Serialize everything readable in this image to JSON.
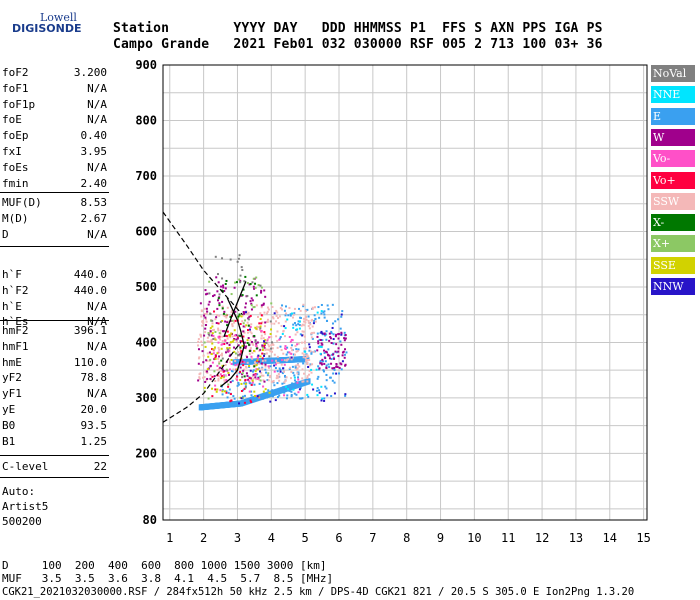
{
  "logo": {
    "line1": "Lowell",
    "line2": "DIGISONDE"
  },
  "header": {
    "row1": "Station        YYYY DAY   DDD HHMMSS P1  FFS S AXN PPS IGA PS",
    "row2": "Campo Grande   2021 Feb01 032 030000 RSF 005 2 713 100 03+ 36"
  },
  "params": [
    {
      "group": [
        {
          "name": "foF2",
          "value": "3.200"
        },
        {
          "name": "foF1",
          "value": "N/A"
        },
        {
          "name": "foF1p",
          "value": "N/A"
        },
        {
          "name": "foE",
          "value": "N/A"
        },
        {
          "name": "foEp",
          "value": "0.40"
        },
        {
          "name": "fxI",
          "value": "3.95"
        },
        {
          "name": "foEs",
          "value": "N/A"
        },
        {
          "name": "fmin",
          "value": "2.40"
        }
      ]
    },
    {
      "group": [
        {
          "name": "MUF(D)",
          "value": "8.53"
        },
        {
          "name": "M(D)",
          "value": "2.67"
        },
        {
          "name": "D",
          "value": "N/A"
        }
      ]
    },
    {
      "group": [
        {
          "name": "h`F",
          "value": "440.0"
        },
        {
          "name": "h`F2",
          "value": "440.0"
        },
        {
          "name": "h`E",
          "value": "N/A"
        },
        {
          "name": "h`Es",
          "value": "N/A"
        }
      ]
    },
    {
      "group": [
        {
          "name": "hmF2",
          "value": "396.1"
        },
        {
          "name": "hmF1",
          "value": "N/A"
        },
        {
          "name": "hmE",
          "value": "110.0"
        },
        {
          "name": "yF2",
          "value": "78.8"
        },
        {
          "name": "yF1",
          "value": "N/A"
        },
        {
          "name": "yE",
          "value": "20.0"
        },
        {
          "name": "B0",
          "value": "93.5"
        },
        {
          "name": "B1",
          "value": "1.25"
        }
      ]
    },
    {
      "group": [
        {
          "name": "C-level",
          "value": "22"
        }
      ]
    }
  ],
  "autoscaling": {
    "line1": "Auto:",
    "line2": "Artist5",
    "line3": "500200"
  },
  "legend": [
    {
      "label": "NoVal",
      "color": "#808080",
      "text_color": "#ffffff"
    },
    {
      "label": "NNE",
      "color": "#00e5ff",
      "text_color": "#ffffff"
    },
    {
      "label": "E",
      "color": "#3aa0f0",
      "text_color": "#ffffff"
    },
    {
      "label": "W",
      "color": "#a0008c",
      "text_color": "#ffffff"
    },
    {
      "label": "Vo-",
      "color": "#ff50c8",
      "text_color": "#ffffff"
    },
    {
      "label": "Vo+",
      "color": "#ff0040",
      "text_color": "#ffffff"
    },
    {
      "label": "SSW",
      "color": "#f4b8b8",
      "text_color": "#ffffff"
    },
    {
      "label": "X-",
      "color": "#007800",
      "text_color": "#ffffff"
    },
    {
      "label": "X+",
      "color": "#8cc864",
      "text_color": "#ffffff"
    },
    {
      "label": "SSE",
      "color": "#d2d200",
      "text_color": "#ffffff"
    },
    {
      "label": "NNW",
      "color": "#2814c8",
      "text_color": "#ffffff"
    }
  ],
  "footer": {
    "d_row": "D     100  200  400  600  800 1000 1500 3000 [km]",
    "muf_row": "MUF   3.5  3.5  3.6  3.8  4.1  4.5  5.7  8.5 [MHz]",
    "file_row": "CGK21_2021032030000.RSF / 284fx512h 50 kHz 2.5 km / DPS-4D CGK21 821 / 20.5 S 305.0 E Ion2Png 1.3.20"
  },
  "chart_data": {
    "type": "scatter",
    "title": "",
    "xlabel": "",
    "ylabel": "",
    "xlim": [
      0.8,
      15.1
    ],
    "ylim": [
      80,
      900
    ],
    "x_ticks": [
      "1",
      "2",
      "3",
      "4",
      "5",
      "6",
      "7",
      "8",
      "9",
      "10",
      "11",
      "12",
      "13",
      "14",
      "15"
    ],
    "y_ticks": [
      "80",
      "200",
      "300",
      "400",
      "500",
      "600",
      "700",
      "800",
      "900"
    ],
    "grid": true,
    "legend_position": "right",
    "clusters": [
      {
        "series": "E",
        "color": "#3aa0f0",
        "kind": "band",
        "x": [
          1.9,
          3.1
        ],
        "y": [
          283,
          290
        ]
      },
      {
        "series": "E",
        "color": "#3aa0f0",
        "kind": "band",
        "x": [
          3.1,
          5.1
        ],
        "y": [
          290,
          330
        ]
      },
      {
        "series": "E",
        "color": "#3aa0f0",
        "kind": "band",
        "x": [
          2.9,
          5.0
        ],
        "y": [
          364,
          370
        ]
      },
      {
        "series": "E",
        "color": "#3aa0f0",
        "kind": "scatter",
        "x": [
          4.2,
          6.2
        ],
        "y": [
          300,
          470
        ],
        "n": 160
      },
      {
        "series": "E",
        "color": "#3aa0f0",
        "kind": "scatter",
        "x": [
          2.5,
          4.8
        ],
        "y": [
          300,
          360
        ],
        "n": 90
      },
      {
        "series": "SSW",
        "color": "#f4b8b8",
        "kind": "scatter",
        "x": [
          1.8,
          5.3
        ],
        "y": [
          330,
          470
        ],
        "n": 380
      },
      {
        "series": "W",
        "color": "#a0008c",
        "kind": "scatter",
        "x": [
          1.8,
          3.8
        ],
        "y": [
          330,
          520
        ],
        "n": 150
      },
      {
        "series": "W",
        "color": "#a0008c",
        "kind": "scatter",
        "x": [
          5.3,
          6.2
        ],
        "y": [
          355,
          420
        ],
        "n": 70
      },
      {
        "series": "Vo+",
        "color": "#ff0040",
        "kind": "scatter",
        "x": [
          2.2,
          3.8
        ],
        "y": [
          290,
          460
        ],
        "n": 55
      },
      {
        "series": "Vo-",
        "color": "#ff50c8",
        "kind": "scatter",
        "x": [
          2.2,
          4.8
        ],
        "y": [
          300,
          430
        ],
        "n": 70
      },
      {
        "series": "SSE",
        "color": "#d2d200",
        "kind": "scatter",
        "x": [
          2.0,
          4.0
        ],
        "y": [
          300,
          450
        ],
        "n": 70
      },
      {
        "series": "X+",
        "color": "#8cc864",
        "kind": "scatter",
        "x": [
          2.0,
          4.0
        ],
        "y": [
          300,
          520
        ],
        "n": 40
      },
      {
        "series": "X-",
        "color": "#007800",
        "kind": "scatter",
        "x": [
          2.4,
          3.6
        ],
        "y": [
          330,
          520
        ],
        "n": 30
      },
      {
        "series": "NNW",
        "color": "#2814c8",
        "kind": "scatter",
        "x": [
          2.8,
          6.2
        ],
        "y": [
          290,
          460
        ],
        "n": 40
      },
      {
        "series": "NNE",
        "color": "#00e5ff",
        "kind": "scatter",
        "x": [
          4.3,
          5.5
        ],
        "y": [
          300,
          460
        ],
        "n": 25
      },
      {
        "series": "NoVal",
        "color": "#808080",
        "kind": "scatter",
        "x": [
          2.0,
          4.0
        ],
        "y": [
          320,
          560
        ],
        "n": 40
      }
    ],
    "trace_dashed_upper": {
      "x": [
        0.8,
        1.5,
        2.0,
        2.6,
        3.0,
        3.15
      ],
      "y": [
        635,
        575,
        530,
        488,
        460,
        450
      ]
    },
    "trace_dashed_lower": {
      "x": [
        0.8,
        1.5,
        2.0,
        2.5,
        2.9,
        3.1
      ],
      "y": [
        256,
        283,
        308,
        350,
        385,
        400
      ]
    },
    "trace_solid_profile": {
      "x": [
        2.5,
        2.8,
        3.0,
        3.1,
        3.2,
        3.1,
        3.0,
        2.85,
        2.7
      ],
      "y": [
        320,
        335,
        350,
        370,
        395,
        420,
        440,
        460,
        480
      ]
    },
    "trace_solid_upper": {
      "x": [
        2.6,
        2.85,
        3.05,
        3.25
      ],
      "y": [
        410,
        450,
        480,
        510
      ]
    }
  }
}
